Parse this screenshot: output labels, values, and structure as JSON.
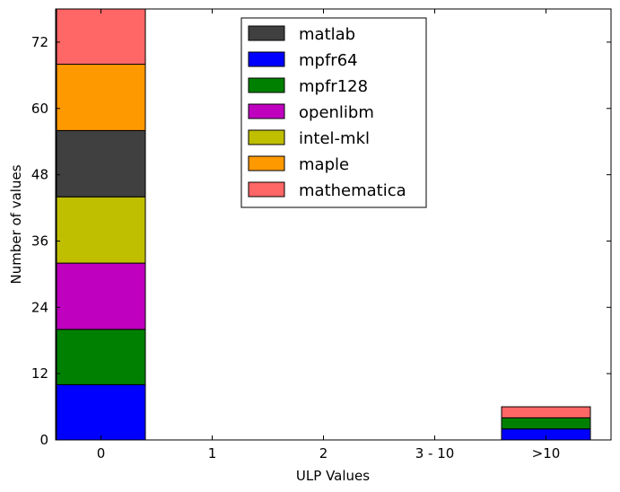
{
  "chart_data": {
    "type": "bar",
    "stacked": true,
    "categories": [
      "0",
      "1",
      "2",
      "3 - 10",
      ">10"
    ],
    "series": [
      {
        "name": "mpfr64",
        "color": "#0000ff",
        "values": [
          10,
          0,
          0,
          0,
          2
        ]
      },
      {
        "name": "mpfr128",
        "color": "#008000",
        "values": [
          10,
          0,
          0,
          0,
          2
        ]
      },
      {
        "name": "openlibm",
        "color": "#bf00bf",
        "values": [
          12,
          0,
          0,
          0,
          0
        ]
      },
      {
        "name": "intel-mkl",
        "color": "#bfbf00",
        "values": [
          12,
          0,
          0,
          0,
          0
        ]
      },
      {
        "name": "matlab",
        "color": "#404040",
        "values": [
          12,
          0,
          0,
          0,
          0
        ]
      },
      {
        "name": "maple",
        "color": "#ff9900",
        "values": [
          12,
          0,
          0,
          0,
          0
        ]
      },
      {
        "name": "mathematica",
        "color": "#ff6666",
        "values": [
          10,
          0,
          0,
          0,
          2
        ]
      }
    ],
    "legend_order": [
      "matlab",
      "mpfr64",
      "mpfr128",
      "openlibm",
      "intel-mkl",
      "maple",
      "mathematica"
    ],
    "legend_position": "top-center",
    "xlabel": "ULP Values",
    "ylabel": "Number of values",
    "ylim": [
      0,
      78
    ],
    "yticks": [
      0,
      12,
      24,
      36,
      48,
      60,
      72
    ],
    "grid": false
  }
}
